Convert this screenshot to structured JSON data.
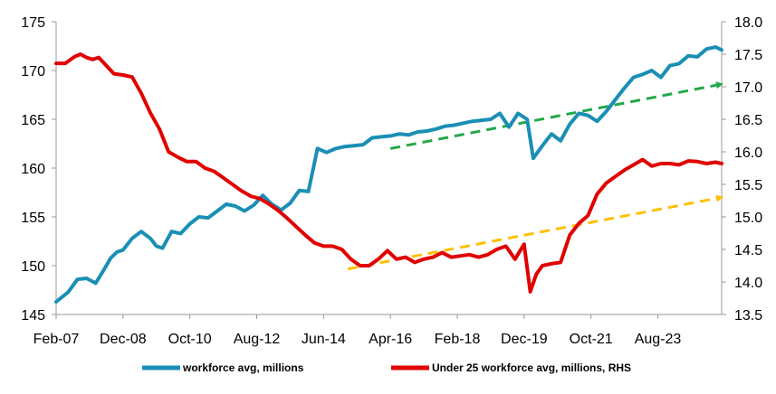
{
  "chart_data": {
    "type": "line",
    "title": "",
    "xlabel": "",
    "ylabel": "",
    "x_tick_labels": [
      "Feb-07",
      "Dec-08",
      "Oct-10",
      "Aug-12",
      "Jun-14",
      "Apr-16",
      "Feb-18",
      "Dec-19",
      "Oct-21",
      "Aug-23"
    ],
    "x_range": [
      "2007-02",
      "2025-05"
    ],
    "y_left": {
      "lim": [
        145,
        175
      ],
      "ticks": [
        145,
        150,
        155,
        160,
        165,
        170,
        175
      ]
    },
    "y_right": {
      "lim": [
        13.5,
        18.0
      ],
      "ticks": [
        13.5,
        14.0,
        14.5,
        15.0,
        15.5,
        16.0,
        16.5,
        17.0,
        17.5,
        18.0
      ]
    },
    "grid": false,
    "legend_position": "bottom",
    "series": [
      {
        "name": "workforce avg, millions",
        "axis": "left",
        "color": "#1a8fb5",
        "x": [
          "2007-02",
          "2007-06",
          "2007-09",
          "2007-12",
          "2008-03",
          "2008-05",
          "2008-08",
          "2008-10",
          "2008-12",
          "2009-03",
          "2009-06",
          "2009-09",
          "2009-11",
          "2010-01",
          "2010-04",
          "2010-07",
          "2010-10",
          "2011-01",
          "2011-04",
          "2011-07",
          "2011-10",
          "2012-01",
          "2012-04",
          "2012-07",
          "2012-10",
          "2013-01",
          "2013-04",
          "2013-07",
          "2013-10",
          "2014-01",
          "2014-04",
          "2014-07",
          "2014-10",
          "2015-01",
          "2015-04",
          "2015-07",
          "2015-10",
          "2016-01",
          "2016-04",
          "2016-07",
          "2016-10",
          "2017-01",
          "2017-04",
          "2017-07",
          "2017-10",
          "2018-01",
          "2018-04",
          "2018-07",
          "2018-10",
          "2019-01",
          "2019-04",
          "2019-07",
          "2019-10",
          "2020-01",
          "2020-03",
          "2020-06",
          "2020-09",
          "2020-12",
          "2021-03",
          "2021-06",
          "2021-09",
          "2021-12",
          "2022-03",
          "2022-06",
          "2022-09",
          "2022-12",
          "2023-03",
          "2023-06",
          "2023-09",
          "2023-12",
          "2024-03",
          "2024-06",
          "2024-09",
          "2024-12",
          "2025-03",
          "2025-05"
        ],
        "values": [
          146.3,
          147.3,
          148.6,
          148.7,
          148.2,
          149.2,
          150.8,
          151.4,
          151.6,
          152.8,
          153.5,
          152.8,
          152.0,
          151.8,
          153.5,
          153.3,
          154.3,
          155.0,
          154.9,
          155.6,
          156.3,
          156.1,
          155.6,
          156.2,
          157.2,
          156.3,
          155.7,
          156.4,
          157.7,
          157.6,
          162.0,
          161.6,
          162.0,
          162.2,
          162.3,
          162.4,
          163.1,
          163.2,
          163.3,
          163.5,
          163.4,
          163.7,
          163.8,
          164.0,
          164.3,
          164.4,
          164.6,
          164.8,
          164.9,
          165.0,
          165.6,
          164.2,
          165.6,
          165.0,
          161.0,
          162.3,
          163.5,
          162.8,
          164.5,
          165.6,
          165.4,
          164.8,
          165.8,
          167.0,
          168.2,
          169.3,
          169.6,
          170.0,
          169.3,
          170.5,
          170.7,
          171.5,
          171.4,
          172.2,
          172.4,
          172.1
        ]
      },
      {
        "name": "Under 25 workforce avg, millions, RHS",
        "axis": "right",
        "color": "#e00000",
        "x": [
          "2007-02",
          "2007-05",
          "2007-08",
          "2007-10",
          "2007-12",
          "2008-02",
          "2008-04",
          "2008-07",
          "2008-09",
          "2008-12",
          "2009-03",
          "2009-06",
          "2009-09",
          "2009-12",
          "2010-03",
          "2010-06",
          "2010-09",
          "2010-12",
          "2011-03",
          "2011-06",
          "2011-09",
          "2011-12",
          "2012-03",
          "2012-06",
          "2012-09",
          "2012-12",
          "2013-03",
          "2013-06",
          "2013-09",
          "2013-12",
          "2014-03",
          "2014-06",
          "2014-09",
          "2014-12",
          "2015-03",
          "2015-06",
          "2015-09",
          "2015-12",
          "2016-03",
          "2016-06",
          "2016-09",
          "2016-12",
          "2017-03",
          "2017-06",
          "2017-09",
          "2017-12",
          "2018-03",
          "2018-06",
          "2018-09",
          "2018-12",
          "2019-03",
          "2019-06",
          "2019-09",
          "2019-12",
          "2020-02",
          "2020-04",
          "2020-06",
          "2020-09",
          "2020-12",
          "2021-03",
          "2021-06",
          "2021-09",
          "2021-12",
          "2022-03",
          "2022-06",
          "2022-09",
          "2022-12",
          "2023-03",
          "2023-06",
          "2023-09",
          "2023-12",
          "2024-03",
          "2024-06",
          "2024-09",
          "2024-12",
          "2025-03",
          "2025-05"
        ],
        "values": [
          17.36,
          17.36,
          17.46,
          17.5,
          17.45,
          17.42,
          17.45,
          17.3,
          17.2,
          17.18,
          17.15,
          16.9,
          16.6,
          16.35,
          16.0,
          15.92,
          15.85,
          15.85,
          15.75,
          15.7,
          15.6,
          15.5,
          15.4,
          15.32,
          15.28,
          15.2,
          15.1,
          14.98,
          14.85,
          14.72,
          14.6,
          14.55,
          14.55,
          14.5,
          14.35,
          14.25,
          14.25,
          14.35,
          14.48,
          14.35,
          14.38,
          14.3,
          14.35,
          14.38,
          14.45,
          14.38,
          14.4,
          14.42,
          14.38,
          14.42,
          14.5,
          14.55,
          14.35,
          14.58,
          13.85,
          14.12,
          14.25,
          14.28,
          14.3,
          14.72,
          14.9,
          15.02,
          15.35,
          15.52,
          15.62,
          15.72,
          15.8,
          15.88,
          15.78,
          15.82,
          15.82,
          15.8,
          15.86,
          15.85,
          15.82,
          15.84,
          15.82
        ]
      }
    ],
    "annotations": [
      {
        "type": "dashed-arrow",
        "color": "#22a84a",
        "axis": "left",
        "from": [
          "2016-04",
          162.0
        ],
        "to": [
          "2025-05",
          168.6
        ]
      },
      {
        "type": "dashed-arrow",
        "color": "#ffc000",
        "axis": "right",
        "from": [
          "2015-02",
          14.2
        ],
        "to": [
          "2025-05",
          15.3
        ]
      }
    ]
  }
}
